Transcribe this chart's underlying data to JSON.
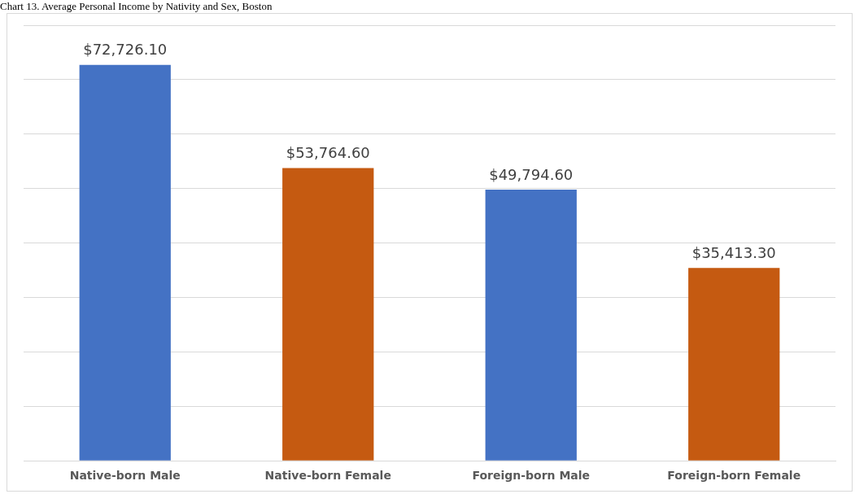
{
  "chart_data": {
    "type": "bar",
    "title": "Chart 13. Average Personal Income by Nativity and Sex, Boston",
    "categories": [
      "Native-born Male",
      "Native-born Female",
      "Foreign-born Male",
      "Foreign-born Female"
    ],
    "values": [
      72726.1,
      53764.6,
      49794.6,
      35413.3
    ],
    "colors": [
      "#4472c4",
      "#c55a11",
      "#4472c4",
      "#c55a11"
    ],
    "value_labels": [
      "$72,726.10",
      "$53,764.60",
      "$49,794.60",
      "$35,413.30"
    ],
    "ylim": [
      0,
      80000
    ],
    "yticks": [
      {
        "value": 0,
        "label": null
      },
      {
        "value": 10000,
        "label": null
      },
      {
        "value": 20000,
        "label": null
      },
      {
        "value": 30000,
        "label": null
      },
      {
        "value": 40000,
        "label": null
      },
      {
        "value": 50000,
        "label": null
      },
      {
        "value": 60000,
        "label": null
      },
      {
        "value": 70000,
        "label": null
      },
      {
        "value": 80000,
        "label": null
      }
    ],
    "grid": "y",
    "tick_labels": "x",
    "legend": false
  }
}
